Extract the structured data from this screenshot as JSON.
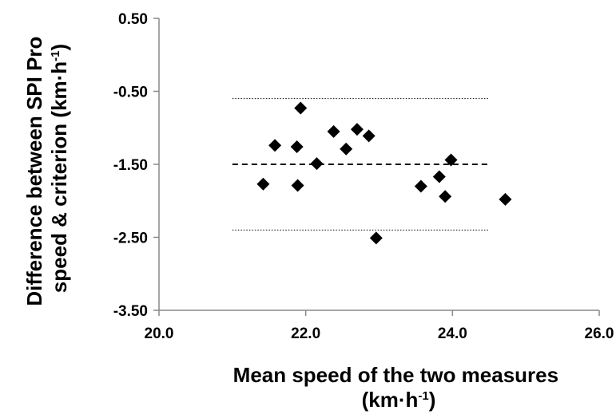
{
  "chart_data": {
    "type": "scatter",
    "title": "",
    "xlabel": {
      "line1": "Mean speed of the two measures",
      "line2_pre": "(km·h",
      "line2_sup": "-1",
      "line2_post": ")"
    },
    "ylabel": {
      "line1": "Difference between SPI Pro",
      "line2_pre": "speed & criterion (km·h",
      "line2_sup": "-1",
      "line2_post": ")"
    },
    "xlim": [
      20.0,
      26.0
    ],
    "ylim": [
      -3.5,
      0.5
    ],
    "x_ticks": [
      "20.0",
      "22.0",
      "24.0",
      "26.0"
    ],
    "y_ticks": [
      "0.50",
      "-0.50",
      "-1.50",
      "-2.50",
      "-3.50"
    ],
    "x_tick_values": [
      20.0,
      22.0,
      24.0,
      26.0
    ],
    "y_tick_values": [
      0.5,
      -0.5,
      -1.5,
      -2.5,
      -3.5
    ],
    "grid": false,
    "marker": "diamond",
    "marker_color": "#000000",
    "points": [
      {
        "x": 21.42,
        "y": -1.77
      },
      {
        "x": 21.58,
        "y": -1.24
      },
      {
        "x": 21.88,
        "y": -1.26
      },
      {
        "x": 21.89,
        "y": -1.79
      },
      {
        "x": 21.93,
        "y": -0.73
      },
      {
        "x": 22.15,
        "y": -1.49
      },
      {
        "x": 22.38,
        "y": -1.05
      },
      {
        "x": 22.55,
        "y": -1.29
      },
      {
        "x": 22.7,
        "y": -1.02
      },
      {
        "x": 22.86,
        "y": -1.11
      },
      {
        "x": 22.96,
        "y": -2.51
      },
      {
        "x": 23.57,
        "y": -1.8
      },
      {
        "x": 23.82,
        "y": -1.67
      },
      {
        "x": 23.9,
        "y": -1.94
      },
      {
        "x": 23.98,
        "y": -1.44
      },
      {
        "x": 24.72,
        "y": -1.98
      }
    ],
    "reference_lines": [
      {
        "name": "mean bias",
        "y": -1.5,
        "x_start": 21.0,
        "x_end": 24.5,
        "style": "dashed"
      },
      {
        "name": "upper limit of agreement",
        "y": -0.6,
        "x_start": 21.0,
        "x_end": 24.5,
        "style": "dotted"
      },
      {
        "name": "lower limit of agreement",
        "y": -2.4,
        "x_start": 21.0,
        "x_end": 24.5,
        "style": "dotted"
      }
    ]
  }
}
